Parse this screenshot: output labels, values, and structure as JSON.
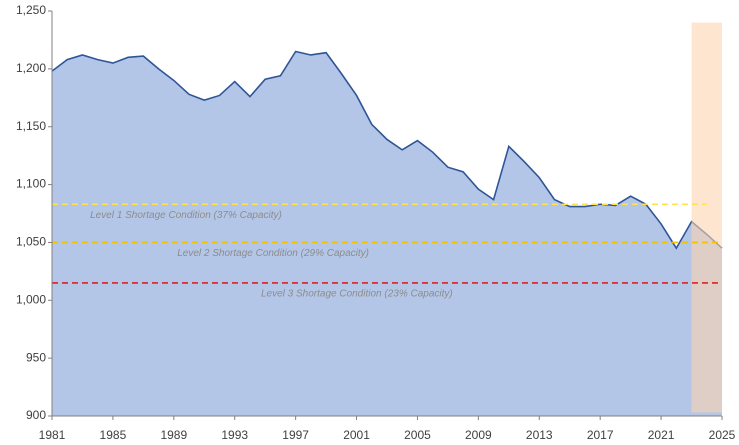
{
  "chart_data": {
    "type": "area",
    "x": [
      1981,
      1982,
      1983,
      1984,
      1985,
      1986,
      1987,
      1988,
      1989,
      1990,
      1991,
      1992,
      1993,
      1994,
      1995,
      1996,
      1997,
      1998,
      1999,
      2000,
      2001,
      2002,
      2003,
      2004,
      2005,
      2006,
      2007,
      2008,
      2009,
      2010,
      2011,
      2012,
      2013,
      2014,
      2015,
      2016,
      2017,
      2018,
      2019,
      2020,
      2021,
      2022,
      2023,
      2024,
      2025
    ],
    "series": [
      {
        "color": "#2f5597",
        "fill": "#b4c6e7",
        "values": [
          1198,
          1208,
          1212,
          1208,
          1205,
          1210,
          1211,
          1200,
          1190,
          1178,
          1173,
          1177,
          1189,
          1176,
          1191,
          1194,
          1215,
          1212,
          1214,
          1196,
          1177,
          1152,
          1139,
          1130,
          1138,
          1128,
          1115,
          1111,
          1096,
          1087,
          1133,
          1120,
          1106,
          1087,
          1081,
          1081,
          1083,
          1082,
          1090,
          1083,
          1066,
          1045,
          1068,
          1057,
          1045
        ]
      }
    ],
    "xlim": [
      1981,
      2025
    ],
    "xticks": [
      1981,
      1985,
      1989,
      1993,
      1997,
      2001,
      2005,
      2009,
      2013,
      2017,
      2021,
      2025
    ],
    "ylim": [
      900,
      1250
    ],
    "yticks": [
      {
        "value": 900,
        "label": "900"
      },
      {
        "value": 950,
        "label": "950"
      },
      {
        "value": 1000,
        "label": "1,000"
      },
      {
        "value": 1050,
        "label": "1,050"
      },
      {
        "value": 1100,
        "label": "1,100"
      },
      {
        "value": 1150,
        "label": "1,150"
      },
      {
        "value": 1200,
        "label": "1,200"
      },
      {
        "value": 1250,
        "label": "1,250"
      }
    ],
    "reference_lines": [
      {
        "label": "Level 1 Shortage Condition (37% Capacity)",
        "value": 1083,
        "x": [
          1981,
          2024
        ],
        "color": "#ffe34d"
      },
      {
        "label": "Level 2 Shortage Condition (29% Capacity)",
        "value": 1050,
        "x": [
          1981,
          2025
        ],
        "color": "#f2c200"
      },
      {
        "label": "Level 3 Shortage Condition (23% Capacity)",
        "value": 1015,
        "x": [
          1981,
          2025
        ],
        "color": "#e02020"
      }
    ],
    "highlight": {
      "x": [
        2023,
        2025
      ],
      "y": [
        903,
        1240
      ],
      "color": "#fbd3b0"
    }
  }
}
